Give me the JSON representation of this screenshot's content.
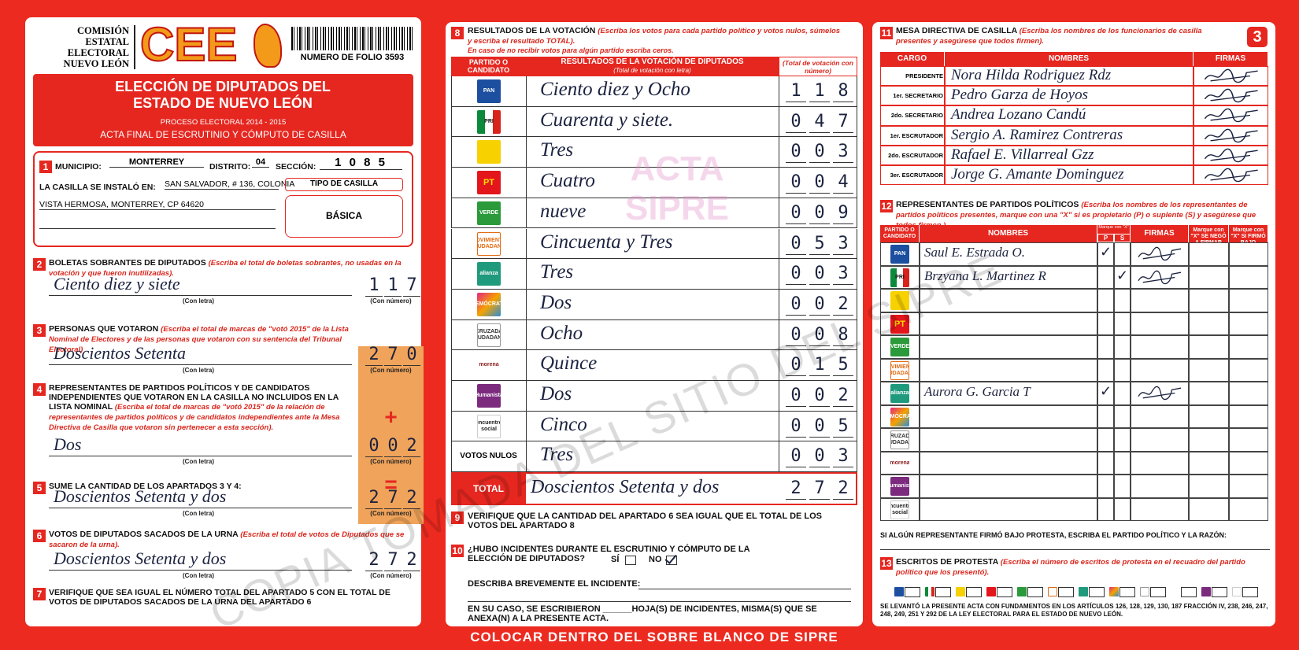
{
  "header": {
    "org": "COMISIÓN ESTATAL ELECTORAL NUEVO LEÓN",
    "logo": "CEE",
    "folio": "NUMERO DE FOLIO 3593",
    "title": "ELECCIÓN DE DIPUTADOS DEL ESTADO DE NUEVO LEÓN",
    "process": "PROCESO ELECTORAL 2014 - 2015",
    "subtitle": "ACTA FINAL DE ESCRUTINIO Y CÓMPUTO DE CASILLA",
    "sheet": "3"
  },
  "section_1": {
    "number": "1",
    "municipio_label": "MUNICIPIO:",
    "municipio": "MONTERREY",
    "distrito_label": "DISTRITO:",
    "distrito": "04",
    "seccion_label": "SECCIÓN:",
    "seccion": "1 0 8 5",
    "location_label": "LA CASILLA SE INSTALÓ EN:",
    "location_1": "SAN SALVADOR, # 136, COLONIA",
    "location_2": "VISTA HERMOSA, MONTERREY, CP 64620",
    "tipo_label": "TIPO DE CASILLA",
    "tipo": "BÁSICA"
  },
  "captions": {
    "letter": "(Con letra)",
    "number": "(Con número)"
  },
  "items": [
    {
      "number": "2",
      "title": "BOLETAS SOBRANTES DE DIPUTADOS",
      "instruction": "(Escriba el total de boletas sobrantes, no usadas en la votación y que fueron inutilizadas).",
      "letter": "Ciento diez y siete",
      "digits": [
        "1",
        "1",
        "7"
      ]
    },
    {
      "number": "3",
      "title": "PERSONAS QUE VOTARON",
      "instruction": "(Escriba el total de marcas de \"votó 2015\" de la Lista Nominal de Electores y de las personas que votaron con su sentencia del Tribunal Electoral)",
      "letter": "Doscientos Setenta",
      "digits": [
        "2",
        "7",
        "0"
      ]
    },
    {
      "number": "4",
      "title": "REPRESENTANTES DE PARTIDOS POLÍTICOS Y DE CANDIDATOS INDEPENDIENTES QUE VOTARON EN LA CASILLA NO INCLUIDOS EN LA LISTA NOMINAL",
      "instruction": "(Escriba el total de marcas de \"votó 2015\" de la relación de representantes de partidos políticos y de candidatos independientes ante la Mesa Directiva de Casilla que votaron sin pertenecer a esta sección).",
      "letter": "Dos",
      "digits": [
        "0",
        "0",
        "2"
      ],
      "sign": "+"
    },
    {
      "number": "5",
      "title": "SUME LA CANTIDAD DE LOS APARTADOS 3 Y 4:",
      "letter": "Doscientos Setenta y dos",
      "digits": [
        "2",
        "7",
        "2"
      ],
      "sign": "="
    },
    {
      "number": "6",
      "title": "VOTOS DE DIPUTADOS SACADOS DE LA URNA",
      "instruction": "(Escriba el total de votos de Diputados que se sacaron de la urna).",
      "letter": "Doscientos Setenta y dos",
      "digits": [
        "2",
        "7",
        "2"
      ]
    },
    {
      "number": "7",
      "title": "VERIFIQUE QUE SEA IGUAL EL NÚMERO TOTAL DEL APARTADO 5 CON EL TOTAL DE VOTOS DE DIPUTADOS SACADOS DE LA URNA DEL APARTADO 6"
    }
  ],
  "results": {
    "number": "8",
    "title": "RESULTADOS DE LA VOTACIÓN",
    "instruction": "(Escriba los votos para cada partido político y votos nulos, súmelos y escriba el resultado TOTAL).",
    "note": "En caso de no recibir votos para algún partido escriba ceros.",
    "columns": [
      "PARTIDO O CANDIDATO",
      "RESULTADOS DE LA VOTACIÓN DE DIPUTADOS",
      "(Total de votación con número)"
    ],
    "letter_column_note": "(Total de votación con letra)",
    "rows": [
      {
        "party": "PAN",
        "letter": "Ciento diez y Ocho",
        "digits": [
          "1",
          "1",
          "8"
        ]
      },
      {
        "party": "PRI",
        "letter": "Cuarenta y siete.",
        "digits": [
          "0",
          "4",
          "7"
        ]
      },
      {
        "party": null,
        "letter": "Tres",
        "digits": [
          "0",
          "0",
          "3"
        ]
      },
      {
        "party": "PT",
        "letter": "Cuatro",
        "digits": [
          "0",
          "0",
          "4"
        ]
      },
      {
        "party": "VERDE",
        "letter": "nueve",
        "digits": [
          "0",
          "0",
          "9"
        ]
      },
      {
        "party": "MOVIMIENTO CIUDADANO",
        "letter": "Cincuenta y Tres",
        "digits": [
          "0",
          "5",
          "3"
        ]
      },
      {
        "party": "alianza",
        "letter": "Tres",
        "digits": [
          "0",
          "0",
          "3"
        ]
      },
      {
        "party": "DEMÓCRATA",
        "letter": "Dos",
        "digits": [
          "0",
          "0",
          "2"
        ]
      },
      {
        "party": "CRUZADA CIUDADANA",
        "letter": "Ocho",
        "digits": [
          "0",
          "0",
          "8"
        ]
      },
      {
        "party": "morena",
        "letter": "Quince",
        "digits": [
          "0",
          "1",
          "5"
        ]
      },
      {
        "party": "Humanista",
        "letter": "Dos",
        "digits": [
          "0",
          "0",
          "2"
        ]
      },
      {
        "party": "encuentro social",
        "letter": "Cinco",
        "digits": [
          "0",
          "0",
          "5"
        ]
      },
      {
        "party": "VOTOS NULOS",
        "letter": "Tres",
        "digits": [
          "0",
          "0",
          "3"
        ]
      }
    ],
    "total": {
      "label": "TOTAL",
      "letter": "Doscientos Setenta y dos",
      "digits": [
        "2",
        "7",
        "2"
      ]
    }
  },
  "verify_9": {
    "number": "9",
    "text": "VERIFIQUE QUE LA CANTIDAD DEL APARTADO 6 SEA IGUAL QUE EL TOTAL DE LOS VOTOS DEL APARTADO 8"
  },
  "incidents": {
    "number": "10",
    "question": "¿HUBO INCIDENTES DURANTE EL ESCRUTINIO Y CÓMPUTO DE LA ELECCIÓN DE DIPUTADOS?",
    "yes": "SÍ",
    "no": "NO",
    "describe": "DESCRIBA BREVEMENTE EL INCIDENTE:",
    "sheets": "EN SU CASO, SE ESCRIBIERON ______HOJA(S) DE INCIDENTES, MISMA(S) QUE SE ANEXA(N) A LA PRESENTE ACTA."
  },
  "footer": "COLOCAR DENTRO DEL SOBRE BLANCO DE SIPRE",
  "board": {
    "number": "11",
    "title": "MESA DIRECTIVA DE CASILLA",
    "instruction": "(Escriba los nombres de los funcionarios de casilla presentes y asegúrese que todos firmen).",
    "columns": [
      "CARGO",
      "NOMBRES",
      "FIRMAS"
    ],
    "rows": [
      {
        "role": "PRESIDENTE",
        "name": "Nora Hilda Rodriguez Rdz"
      },
      {
        "role": "1er. SECRETARIO",
        "name": "Pedro Garza de Hoyos"
      },
      {
        "role": "2do. SECRETARIO",
        "name": "Andrea Lozano Candú"
      },
      {
        "role": "1er. ESCRUTADOR",
        "name": "Sergio A. Ramirez Contreras"
      },
      {
        "role": "2do. ESCRUTADOR",
        "name": "Rafael E. Villarreal Gzz"
      },
      {
        "role": "3er. ESCRUTADOR",
        "name": "Jorge G. Amante Dominguez"
      }
    ]
  },
  "representatives": {
    "number": "12",
    "title": "REPRESENTANTES DE PARTIDOS POLÍTICOS",
    "instruction": "(Escriba los nombres de los representantes de partidos políticos presentes, marque con una \"X\" si es propietario (P) o suplente (S) y asegúrese que todos firmen.)",
    "columns": {
      "party": "PARTIDO O CANDIDATO",
      "names": "NOMBRES",
      "mark": "Marque con \"X\"",
      "p": "P",
      "s": "S",
      "signatures": "FIRMAS",
      "refused": "Marque con \"X\" SE NEGÓ A FIRMAR",
      "protest": "Marque con \"X\" SI FIRMÓ BAJO PROTESTA"
    },
    "rows": [
      {
        "name": "Saul E. Estrada O.",
        "p": "✓"
      },
      {
        "name": "Brzyana L. Martinez R",
        "s": "✓"
      },
      null,
      null,
      null,
      null,
      {
        "name": "Aurora G. Garcia T",
        "p": "✓"
      },
      null,
      null,
      null,
      null,
      null
    ],
    "protest_note": "SI ALGÚN REPRESENTANTE FIRMÓ BAJO PROTESTA, ESCRIBA EL PARTIDO POLÍTICO Y LA RAZÓN:"
  },
  "protest_writs": {
    "number": "13",
    "title": "ESCRITOS DE PROTESTA",
    "instruction": "(Escriba el número de escritos de protesta en el recuadro del partido político que los presentó).",
    "legal": "SE LEVANTÓ LA PRESENTE ACTA CON FUNDAMENTOS EN LOS ARTÍCULOS 126, 128, 129, 130, 187 FRACCIÓN IV, 238, 246, 247, 248, 249, 251 Y 292 DE LA LEY ELECTORAL PARA EL ESTADO DE NUEVO LEÓN."
  },
  "watermarks": {
    "acta": "ACTA SIPRE",
    "copy": "COPIA TOMADA DEL SITIO DEL SIPRE"
  }
}
